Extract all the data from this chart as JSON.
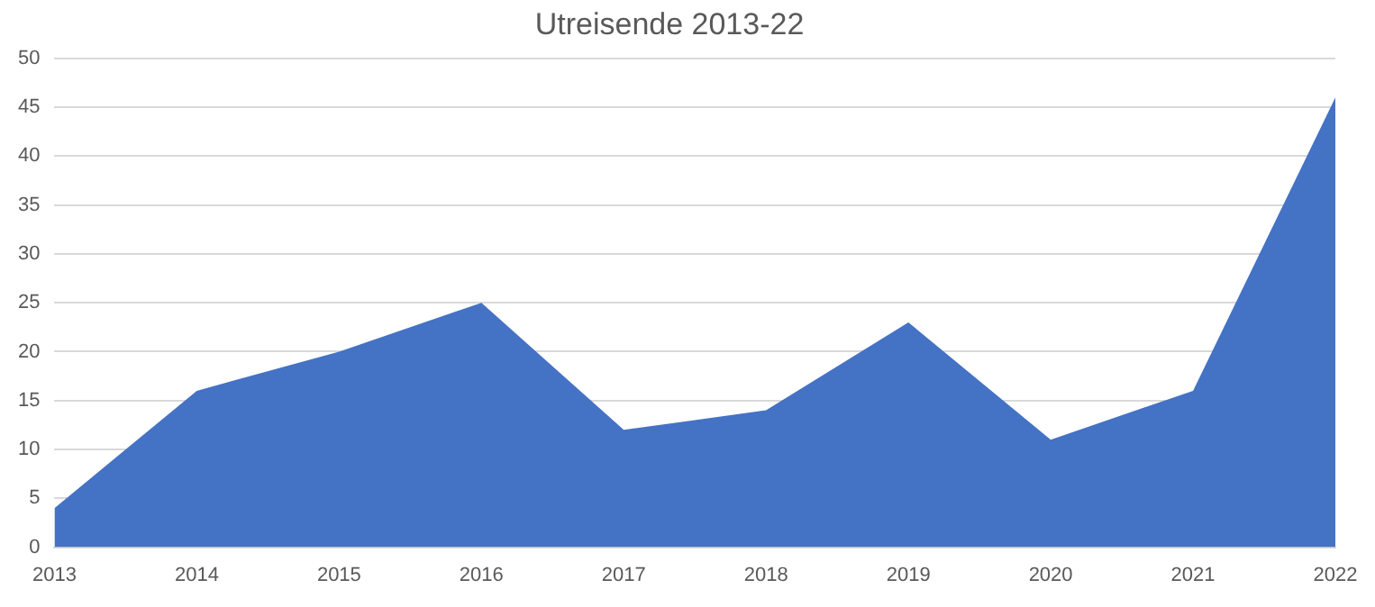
{
  "chart_data": {
    "type": "area",
    "title": "Utreisende 2013-22",
    "categories": [
      "2013",
      "2014",
      "2015",
      "2016",
      "2017",
      "2018",
      "2019",
      "2020",
      "2021",
      "2022"
    ],
    "series": [
      {
        "color": "#4472c4",
        "values": [
          4,
          16,
          20,
          25,
          12,
          14,
          23,
          11,
          16,
          46
        ]
      }
    ],
    "ylim": [
      0,
      50
    ],
    "yticks": [
      0,
      5,
      10,
      15,
      20,
      25,
      30,
      35,
      40,
      45,
      50
    ],
    "grid": "y",
    "legend": false
  }
}
